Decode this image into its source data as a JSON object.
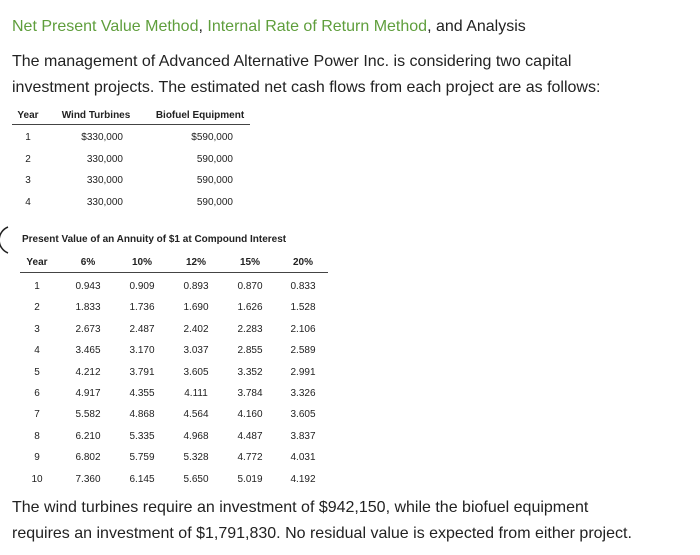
{
  "header": {
    "title": [
      "Net Present Value Method",
      ", ",
      "Internal Rate of Return Method",
      ", and Analysis"
    ]
  },
  "intro": [
    "The management of Advanced Alternative Power Inc. is considering two capital",
    "investment projects. The estimated net cash flows from each project are as follows:"
  ],
  "cash_flow_table": {
    "columns": [
      "Year",
      "Wind Turbines",
      "Biofuel Equipment"
    ],
    "rows": [
      [
        "1",
        "$330,000",
        "$590,000"
      ],
      [
        "2",
        "330,000",
        "590,000"
      ],
      [
        "3",
        "330,000",
        "590,000"
      ],
      [
        "4",
        "330,000",
        "590,000"
      ]
    ]
  },
  "annuity_table": {
    "title": "Present Value of an Annuity of $1 at Compound Interest",
    "columns": [
      "Year",
      "6%",
      "10%",
      "12%",
      "15%",
      "20%"
    ],
    "rows": [
      [
        "1",
        "0.943",
        "0.909",
        "0.893",
        "0.870",
        "0.833"
      ],
      [
        "2",
        "1.833",
        "1.736",
        "1.690",
        "1.626",
        "1.528"
      ],
      [
        "3",
        "2.673",
        "2.487",
        "2.402",
        "2.283",
        "2.106"
      ],
      [
        "4",
        "3.465",
        "3.170",
        "3.037",
        "2.855",
        "2.589"
      ],
      [
        "5",
        "4.212",
        "3.791",
        "3.605",
        "3.352",
        "2.991"
      ],
      [
        "6",
        "4.917",
        "4.355",
        "4.111",
        "3.784",
        "3.326"
      ],
      [
        "7",
        "5.582",
        "4.868",
        "4.564",
        "4.160",
        "3.605"
      ],
      [
        "8",
        "6.210",
        "5.335",
        "4.968",
        "4.487",
        "3.837"
      ],
      [
        "9",
        "6.802",
        "5.759",
        "5.328",
        "4.772",
        "4.031"
      ],
      [
        "10",
        "7.360",
        "6.145",
        "5.650",
        "5.019",
        "4.192"
      ]
    ]
  },
  "closing": [
    "The wind turbines require an investment of $942,150, while the biofuel equipment",
    "requires an investment of $1,791,830. No residual value is expected from either project."
  ]
}
